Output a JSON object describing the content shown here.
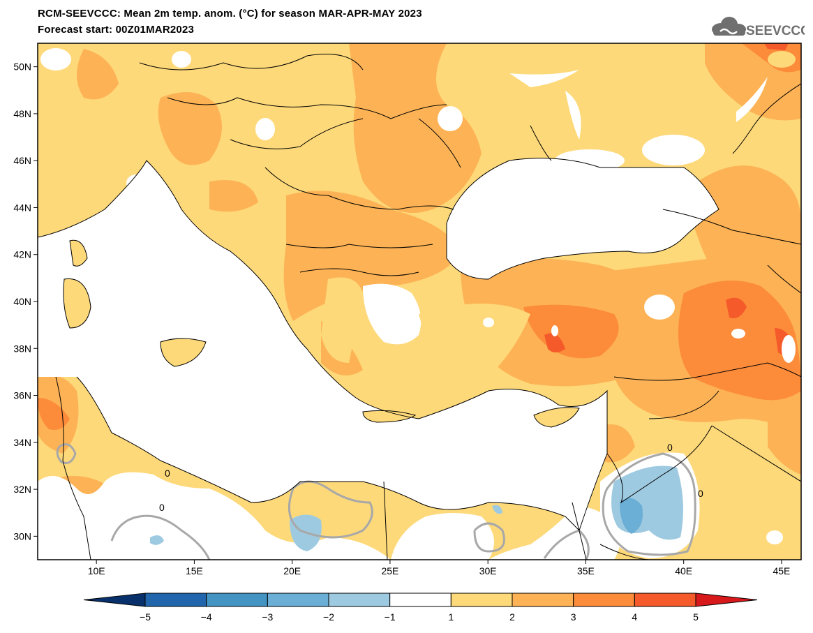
{
  "header": {
    "title": "RCM-SEEVCCC: Mean 2m temp. anom. (°C) for season MAR-APR-MAY 2023",
    "subtitle": "Forecast start: 00Z01MAR2023",
    "logo_text": "SEEVCCC"
  },
  "axes": {
    "lon_ticks": [
      "10E",
      "15E",
      "20E",
      "25E",
      "30E",
      "35E",
      "40E",
      "45E"
    ],
    "lat_ticks": [
      "50N",
      "48N",
      "46N",
      "44N",
      "42N",
      "40N",
      "38N",
      "36N",
      "34N",
      "32N",
      "30N"
    ],
    "lon_range": [
      7,
      46
    ],
    "lat_range": [
      29,
      51
    ]
  },
  "contour_labels": [
    "0",
    "0",
    "0",
    "0"
  ],
  "colorbar": {
    "ticks": [
      "−5",
      "−4",
      "−3",
      "−2",
      "−1",
      "1",
      "2",
      "3",
      "4",
      "5"
    ],
    "colors": [
      "#08306b",
      "#2166ac",
      "#4393c3",
      "#6baed6",
      "#9ecae1",
      "#ffffff",
      "#fdd97a",
      "#fdb355",
      "#fc8b3a",
      "#f45a2a",
      "#d7191c"
    ]
  },
  "chart_data": {
    "type": "heatmap",
    "variable": "Mean 2m temp. anom. (°C)",
    "season": "MAR-APR-MAY 2023",
    "levels": [
      -5,
      -4,
      -3,
      -2,
      -1,
      1,
      2,
      3,
      4,
      5
    ],
    "xlim": [
      7,
      46
    ],
    "ylim": [
      29,
      51
    ]
  }
}
